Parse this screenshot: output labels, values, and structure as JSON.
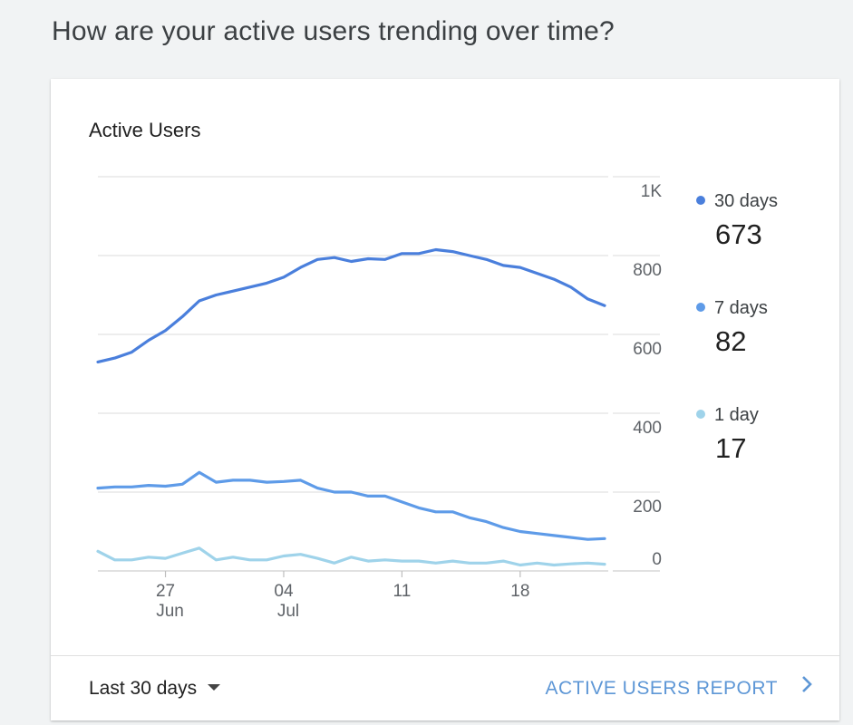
{
  "page": {
    "question": "How are your active users trending over time?"
  },
  "card": {
    "title": "Active Users"
  },
  "legend": [
    {
      "name": "30 days",
      "value": "673",
      "color": "#4a7fdc"
    },
    {
      "name": "7 days",
      "value": "82",
      "color": "#5e9be8"
    },
    {
      "name": "1 day",
      "value": "17",
      "color": "#9fd3ea"
    }
  ],
  "footer": {
    "range_label": "Last 30 days",
    "report_link": "ACTIVE USERS REPORT"
  },
  "chart_data": {
    "type": "line",
    "title": "Active Users",
    "ylim": [
      0,
      1000
    ],
    "y_ticks": [
      {
        "value": 0,
        "label": "0"
      },
      {
        "value": 200,
        "label": "200"
      },
      {
        "value": 400,
        "label": "400"
      },
      {
        "value": 600,
        "label": "600"
      },
      {
        "value": 800,
        "label": "800"
      },
      {
        "value": 1000,
        "label": "1K"
      }
    ],
    "y_axis_side": "right",
    "grid": true,
    "x": [
      "2018-06-22",
      "2018-06-23",
      "2018-06-24",
      "2018-06-25",
      "2018-06-26",
      "2018-06-27",
      "2018-06-28",
      "2018-06-29",
      "2018-06-30",
      "2018-07-01",
      "2018-07-02",
      "2018-07-03",
      "2018-07-04",
      "2018-07-05",
      "2018-07-06",
      "2018-07-07",
      "2018-07-08",
      "2018-07-09",
      "2018-07-10",
      "2018-07-11",
      "2018-07-12",
      "2018-07-13",
      "2018-07-14",
      "2018-07-15",
      "2018-07-16",
      "2018-07-17",
      "2018-07-18",
      "2018-07-19",
      "2018-07-20",
      "2018-07-21",
      "2018-07-22"
    ],
    "x_ticks": [
      {
        "day": "27",
        "month": "Jun",
        "index": 4
      },
      {
        "day": "04",
        "month": "Jul",
        "index": 11
      },
      {
        "day": "11",
        "month": "",
        "index": 18
      },
      {
        "day": "18",
        "month": "",
        "index": 25
      }
    ],
    "series": [
      {
        "name": "30 days",
        "color": "#4a7fdc",
        "values": [
          530,
          540,
          555,
          585,
          610,
          645,
          685,
          700,
          710,
          720,
          730,
          745,
          770,
          790,
          795,
          785,
          792,
          790,
          805,
          805,
          815,
          810,
          800,
          790,
          775,
          770,
          755,
          740,
          720,
          690,
          673
        ]
      },
      {
        "name": "7 days",
        "color": "#5e9be8",
        "values": [
          210,
          213,
          213,
          217,
          215,
          220,
          250,
          225,
          230,
          230,
          225,
          227,
          230,
          210,
          200,
          200,
          190,
          190,
          175,
          160,
          150,
          150,
          135,
          125,
          110,
          100,
          95,
          90,
          85,
          80,
          82
        ]
      },
      {
        "name": "1 day",
        "color": "#9fd3ea",
        "values": [
          50,
          28,
          28,
          35,
          32,
          45,
          58,
          28,
          35,
          28,
          28,
          38,
          42,
          32,
          20,
          35,
          25,
          28,
          25,
          25,
          20,
          25,
          20,
          20,
          25,
          15,
          20,
          15,
          18,
          20,
          17
        ]
      }
    ]
  }
}
